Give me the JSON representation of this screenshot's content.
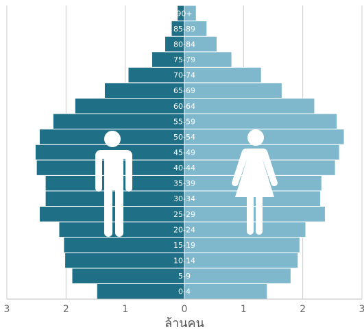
{
  "chart_data": {
    "type": "bar",
    "orientation": "horizontal",
    "variant": "population-pyramid",
    "title": "",
    "xlabel": "ล้านคน",
    "ylabel": "",
    "xlim": [
      -3,
      3
    ],
    "x_ticks": [
      -3,
      -2,
      -1,
      0,
      1,
      2,
      3
    ],
    "x_tick_labels": [
      "3",
      "2",
      "1",
      "0",
      "1",
      "2",
      "3"
    ],
    "grid": true,
    "categories": [
      "0-4",
      "5-9",
      "10-14",
      "15-19",
      "20-24",
      "25-29",
      "30-34",
      "35-39",
      "40-44",
      "45-49",
      "50-54",
      "55-59",
      "60-64",
      "65-69",
      "70-74",
      "75-79",
      "80-84",
      "85-89",
      "90+"
    ],
    "series": [
      {
        "side": "left",
        "icon": "male-icon",
        "color": "#1f6f86",
        "values": [
          1.48,
          1.9,
          2.02,
          2.04,
          2.12,
          2.45,
          2.35,
          2.35,
          2.5,
          2.52,
          2.45,
          2.22,
          1.85,
          1.35,
          0.95,
          0.55,
          0.33,
          0.22,
          0.12
        ]
      },
      {
        "side": "right",
        "icon": "female-icon",
        "color": "#7fb8cd",
        "values": [
          1.4,
          1.8,
          1.92,
          1.95,
          2.05,
          2.38,
          2.3,
          2.32,
          2.55,
          2.62,
          2.7,
          2.58,
          2.2,
          1.65,
          1.3,
          0.8,
          0.55,
          0.38,
          0.2
        ]
      }
    ]
  }
}
